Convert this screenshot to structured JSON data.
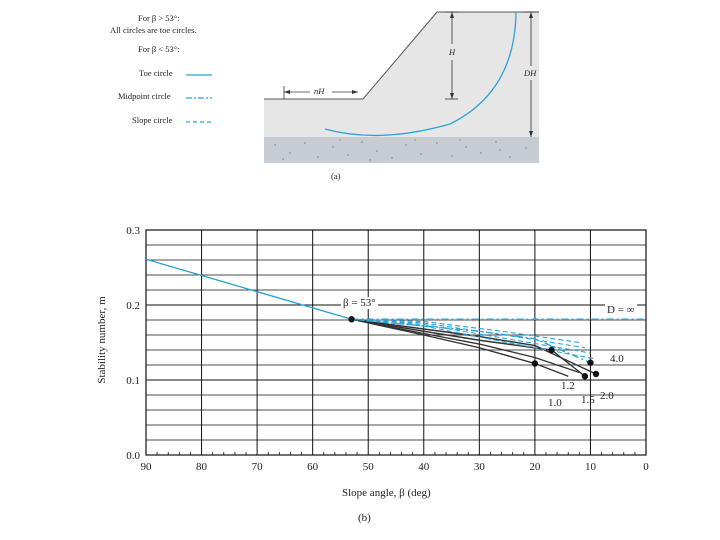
{
  "figure_a": {
    "legend": {
      "line1": "For β > 53°:",
      "line2": "All circles are toe circles.",
      "line3": "For β < 53°:",
      "toe": "Toe circle",
      "midpoint": "Midpoint circle",
      "slope": "Slope circle"
    },
    "dim_nH": "nH",
    "dim_H": "H",
    "dim_DH": "DH",
    "caption": "(a)"
  },
  "figure_b": {
    "caption": "(b)",
    "beta_label": "β = 53°",
    "d_inf_label": "D = ∞",
    "curve_labels": {
      "c10": "1.0",
      "c12": "1.2",
      "c15": "1.5",
      "c20": "2.0",
      "c40": "4.0"
    }
  },
  "chart_data": {
    "type": "line",
    "xlabel": "Slope angle, β (deg)",
    "ylabel": "Stability number, m",
    "xlim": [
      90,
      0
    ],
    "ylim": [
      0.0,
      0.3
    ],
    "x_ticks": [
      "90",
      "80",
      "70",
      "60",
      "50",
      "40",
      "30",
      "20",
      "10",
      "0"
    ],
    "y_ticks": [
      "0.0",
      "0.1",
      "0.2",
      "0.3"
    ],
    "grid": true,
    "series": [
      {
        "name": "β > 53°",
        "style": "solid",
        "x": [
          90,
          53
        ],
        "y": [
          0.261,
          0.181
        ]
      },
      {
        "name": "D = ∞",
        "style": "dashdot",
        "x": [
          53,
          40,
          30,
          20,
          10,
          0
        ],
        "y": [
          0.181,
          0.181,
          0.181,
          0.181,
          0.181,
          0.181
        ]
      },
      {
        "name": "1.0",
        "style": "solid",
        "x": [
          53,
          40,
          30,
          20,
          14
        ],
        "y": [
          0.181,
          0.16,
          0.143,
          0.122,
          0.105
        ]
      },
      {
        "name": "1.2",
        "style": "solid",
        "x": [
          53,
          40,
          30,
          20,
          12
        ],
        "y": [
          0.181,
          0.162,
          0.148,
          0.13,
          0.11
        ]
      },
      {
        "name": "1.5",
        "style": "solid",
        "x": [
          53,
          40,
          30,
          17,
          11
        ],
        "y": [
          0.181,
          0.165,
          0.153,
          0.14,
          0.105
        ]
      },
      {
        "name": "2.0",
        "style": "solid",
        "x": [
          53,
          40,
          30,
          20,
          9
        ],
        "y": [
          0.181,
          0.168,
          0.158,
          0.146,
          0.108
        ]
      },
      {
        "name": "4.0",
        "style": "dashdot",
        "x": [
          53,
          40,
          30,
          20,
          10
        ],
        "y": [
          0.181,
          0.172,
          0.165,
          0.155,
          0.123
        ]
      }
    ],
    "points": [
      {
        "x": 53,
        "y": 0.181
      },
      {
        "x": 20,
        "y": 0.122
      },
      {
        "x": 17,
        "y": 0.14
      },
      {
        "x": 11,
        "y": 0.105
      },
      {
        "x": 10,
        "y": 0.123
      },
      {
        "x": 9,
        "y": 0.108
      }
    ]
  }
}
